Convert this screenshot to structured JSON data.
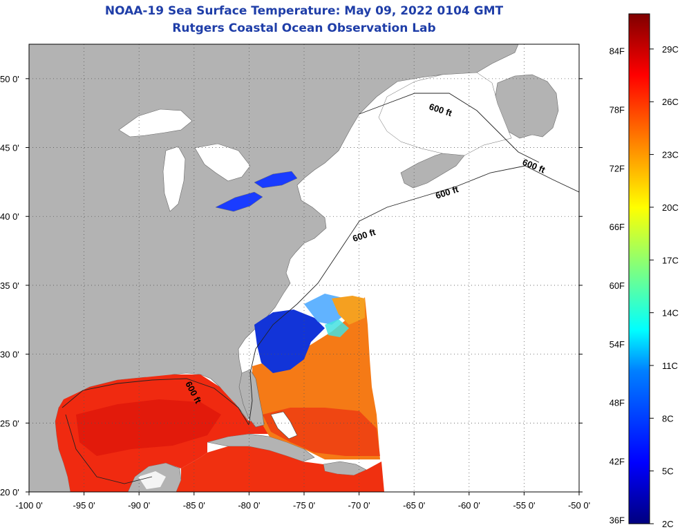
{
  "header": {
    "title": "NOAA-19 Sea Surface Temperature:  May 09, 2022 0104 GMT",
    "subtitle": "Rutgers Coastal Ocean Observation Lab"
  },
  "map": {
    "lon_range": [
      -100,
      -50
    ],
    "lat_range": [
      20,
      52.5
    ],
    "lon_ticks": [
      {
        "v": -100,
        "label": "-100 0'"
      },
      {
        "v": -95,
        "label": "-95 0'"
      },
      {
        "v": -90,
        "label": "-90 0'"
      },
      {
        "v": -85,
        "label": "-85 0'"
      },
      {
        "v": -80,
        "label": "-80 0'"
      },
      {
        "v": -75,
        "label": "-75 0'"
      },
      {
        "v": -70,
        "label": "-70 0'"
      },
      {
        "v": -65,
        "label": "-65 0'"
      },
      {
        "v": -60,
        "label": "-60 0'"
      },
      {
        "v": -55,
        "label": "-55 0'"
      },
      {
        "v": -50,
        "label": "-50 0'"
      }
    ],
    "lat_ticks": [
      {
        "v": 20,
        "label": "20 0'"
      },
      {
        "v": 25,
        "label": "25 0'"
      },
      {
        "v": 30,
        "label": "30 0'"
      },
      {
        "v": 35,
        "label": "35 0'"
      },
      {
        "v": 40,
        "label": "40 0'"
      },
      {
        "v": 45,
        "label": "45 0'"
      },
      {
        "v": 50,
        "label": "50 0'"
      }
    ],
    "contour_label": "600 ft",
    "colors": {
      "land": "#b3b3b3",
      "ocean_no_data": "#ffffff",
      "grid": "#555555"
    }
  },
  "colorbar": {
    "range_c": [
      2,
      31
    ],
    "fahrenheit": [
      "36F",
      "42F",
      "48F",
      "54F",
      "60F",
      "66F",
      "72F",
      "78F",
      "84F"
    ],
    "celsius": [
      "2C",
      "5C",
      "8C",
      "11C",
      "14C",
      "17C",
      "20C",
      "23C",
      "26C",
      "29C"
    ]
  }
}
